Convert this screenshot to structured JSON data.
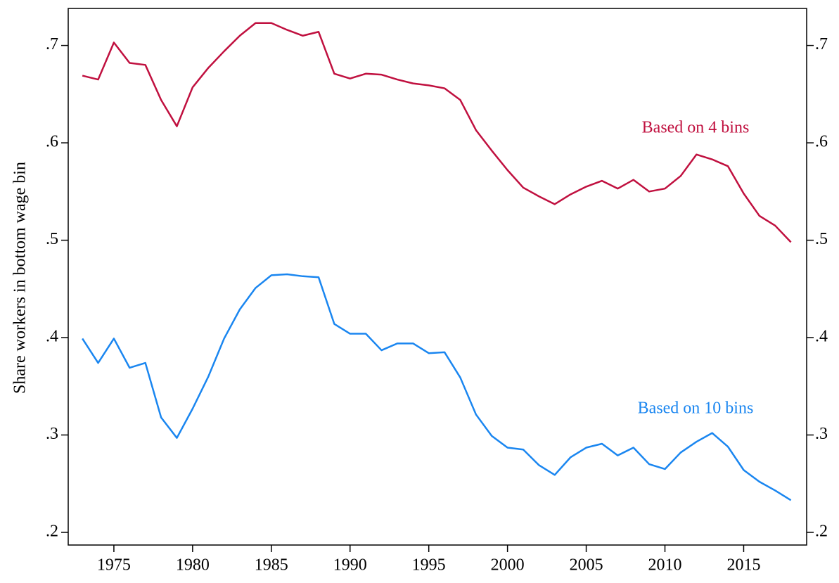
{
  "chart_data": {
    "type": "line",
    "y_label": "Share workers in bottom wage bin",
    "x": [
      1973,
      1974,
      1975,
      1976,
      1977,
      1978,
      1979,
      1980,
      1981,
      1982,
      1983,
      1984,
      1985,
      1986,
      1987,
      1988,
      1989,
      1990,
      1991,
      1992,
      1993,
      1994,
      1995,
      1996,
      1997,
      1998,
      1999,
      2000,
      2001,
      2002,
      2003,
      2004,
      2005,
      2006,
      2007,
      2008,
      2009,
      2010,
      2011,
      2012,
      2013,
      2014,
      2015,
      2016,
      2017,
      2018
    ],
    "series": [
      {
        "name": "Based on 4 bins",
        "color": "#c0103f",
        "values": [
          0.669,
          0.665,
          0.703,
          0.682,
          0.68,
          0.644,
          0.617,
          0.657,
          0.677,
          0.694,
          0.71,
          0.723,
          0.723,
          0.716,
          0.71,
          0.714,
          0.671,
          0.666,
          0.671,
          0.67,
          0.665,
          0.661,
          0.659,
          0.656,
          0.644,
          0.613,
          0.592,
          0.572,
          0.554,
          0.545,
          0.537,
          0.547,
          0.555,
          0.561,
          0.553,
          0.562,
          0.55,
          0.553,
          0.566,
          0.588,
          0.583,
          0.576,
          0.548,
          0.525,
          0.515,
          0.498
        ]
      },
      {
        "name": "Based on 10 bins",
        "color": "#1a86f0",
        "values": [
          0.399,
          0.374,
          0.399,
          0.369,
          0.374,
          0.318,
          0.297,
          0.327,
          0.36,
          0.399,
          0.429,
          0.451,
          0.464,
          0.465,
          0.463,
          0.462,
          0.414,
          0.404,
          0.404,
          0.387,
          0.394,
          0.394,
          0.384,
          0.385,
          0.359,
          0.321,
          0.299,
          0.287,
          0.285,
          0.269,
          0.259,
          0.277,
          0.287,
          0.291,
          0.279,
          0.287,
          0.27,
          0.265,
          0.282,
          0.293,
          0.302,
          0.288,
          0.264,
          0.252,
          0.243,
          0.233
        ]
      }
    ],
    "xlim": [
      1972.1,
      2019.0
    ],
    "xticks": [
      1975,
      1980,
      1985,
      1990,
      1995,
      2000,
      2005,
      2010,
      2015
    ],
    "ylim": [
      0.187,
      0.738
    ],
    "yticks": [
      {
        "value": 0.2,
        "label": ".2"
      },
      {
        "value": 0.3,
        "label": ".3"
      },
      {
        "value": 0.4,
        "label": ".4"
      },
      {
        "value": 0.5,
        "label": ".5"
      },
      {
        "value": 0.6,
        "label": ".6"
      },
      {
        "value": 0.7,
        "label": ".7"
      }
    ],
    "y2lim": [
      0.187,
      0.738
    ],
    "y2ticks": [
      {
        "value": 0.2,
        "label": ".2"
      },
      {
        "value": 0.3,
        "label": ".3"
      },
      {
        "value": 0.4,
        "label": ".4"
      },
      {
        "value": 0.5,
        "label": ".5"
      },
      {
        "value": 0.6,
        "label": ".6"
      },
      {
        "value": 0.7,
        "label": ".7"
      }
    ],
    "grid": false
  }
}
